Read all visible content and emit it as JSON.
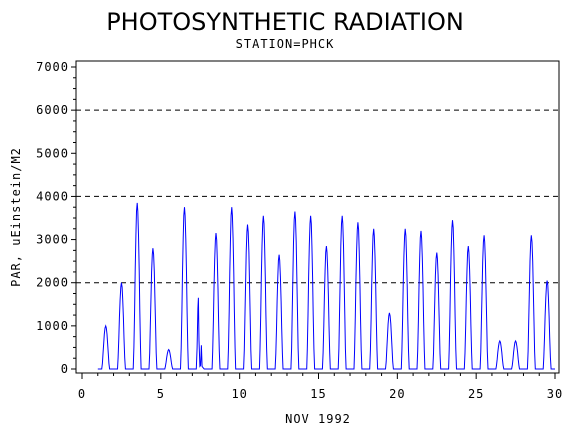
{
  "chart_data": {
    "type": "line",
    "title": "PHOTOSYNTHETIC RADIATION",
    "subtitle": "STATION=PHCK",
    "xlabel": "NOV 1992",
    "ylabel": "PAR, uEinstein/M2",
    "xlim": [
      0,
      30
    ],
    "ylim": [
      0,
      7000
    ],
    "xticks": [
      0,
      5,
      10,
      15,
      20,
      25,
      30
    ],
    "yticks": [
      0,
      1000,
      2000,
      3000,
      4000,
      5000,
      6000,
      7000
    ],
    "reference_lines": [
      2000,
      4000,
      6000
    ],
    "line_color": "#0000ff",
    "grid": false,
    "series": [
      {
        "daily_peaks": [
          {
            "day": 1.5,
            "peaks": [
              1000
            ]
          },
          {
            "day": 2.5,
            "peaks": [
              2000
            ]
          },
          {
            "day": 3.5,
            "peaks": [
              3850
            ]
          },
          {
            "day": 4.5,
            "peaks": [
              2800
            ]
          },
          {
            "day": 5.5,
            "peaks": [
              450
            ]
          },
          {
            "day": 6.5,
            "peaks": [
              3750
            ]
          },
          {
            "day": 7.5,
            "peaks": [
              1650,
              550
            ]
          },
          {
            "day": 8.5,
            "peaks": [
              3150
            ]
          },
          {
            "day": 9.5,
            "peaks": [
              3750
            ]
          },
          {
            "day": 10.5,
            "peaks": [
              3350
            ]
          },
          {
            "day": 11.5,
            "peaks": [
              3550
            ]
          },
          {
            "day": 12.5,
            "peaks": [
              2650
            ]
          },
          {
            "day": 13.5,
            "peaks": [
              3650
            ]
          },
          {
            "day": 14.5,
            "peaks": [
              3550
            ]
          },
          {
            "day": 15.5,
            "peaks": [
              2850
            ]
          },
          {
            "day": 16.5,
            "peaks": [
              3550
            ]
          },
          {
            "day": 17.5,
            "peaks": [
              3400
            ]
          },
          {
            "day": 18.5,
            "peaks": [
              3250
            ]
          },
          {
            "day": 19.5,
            "peaks": [
              1300
            ]
          },
          {
            "day": 20.5,
            "peaks": [
              3250
            ]
          },
          {
            "day": 21.5,
            "peaks": [
              3200
            ]
          },
          {
            "day": 22.5,
            "peaks": [
              2700
            ]
          },
          {
            "day": 23.5,
            "peaks": [
              3450
            ]
          },
          {
            "day": 24.5,
            "peaks": [
              2850
            ]
          },
          {
            "day": 25.5,
            "peaks": [
              3100
            ]
          },
          {
            "day": 26.5,
            "peaks": [
              650
            ]
          },
          {
            "day": 27.5,
            "peaks": [
              650
            ]
          },
          {
            "day": 28.5,
            "peaks": [
              3100
            ]
          },
          {
            "day": 29.5,
            "peaks": [
              2050
            ]
          }
        ]
      }
    ]
  }
}
